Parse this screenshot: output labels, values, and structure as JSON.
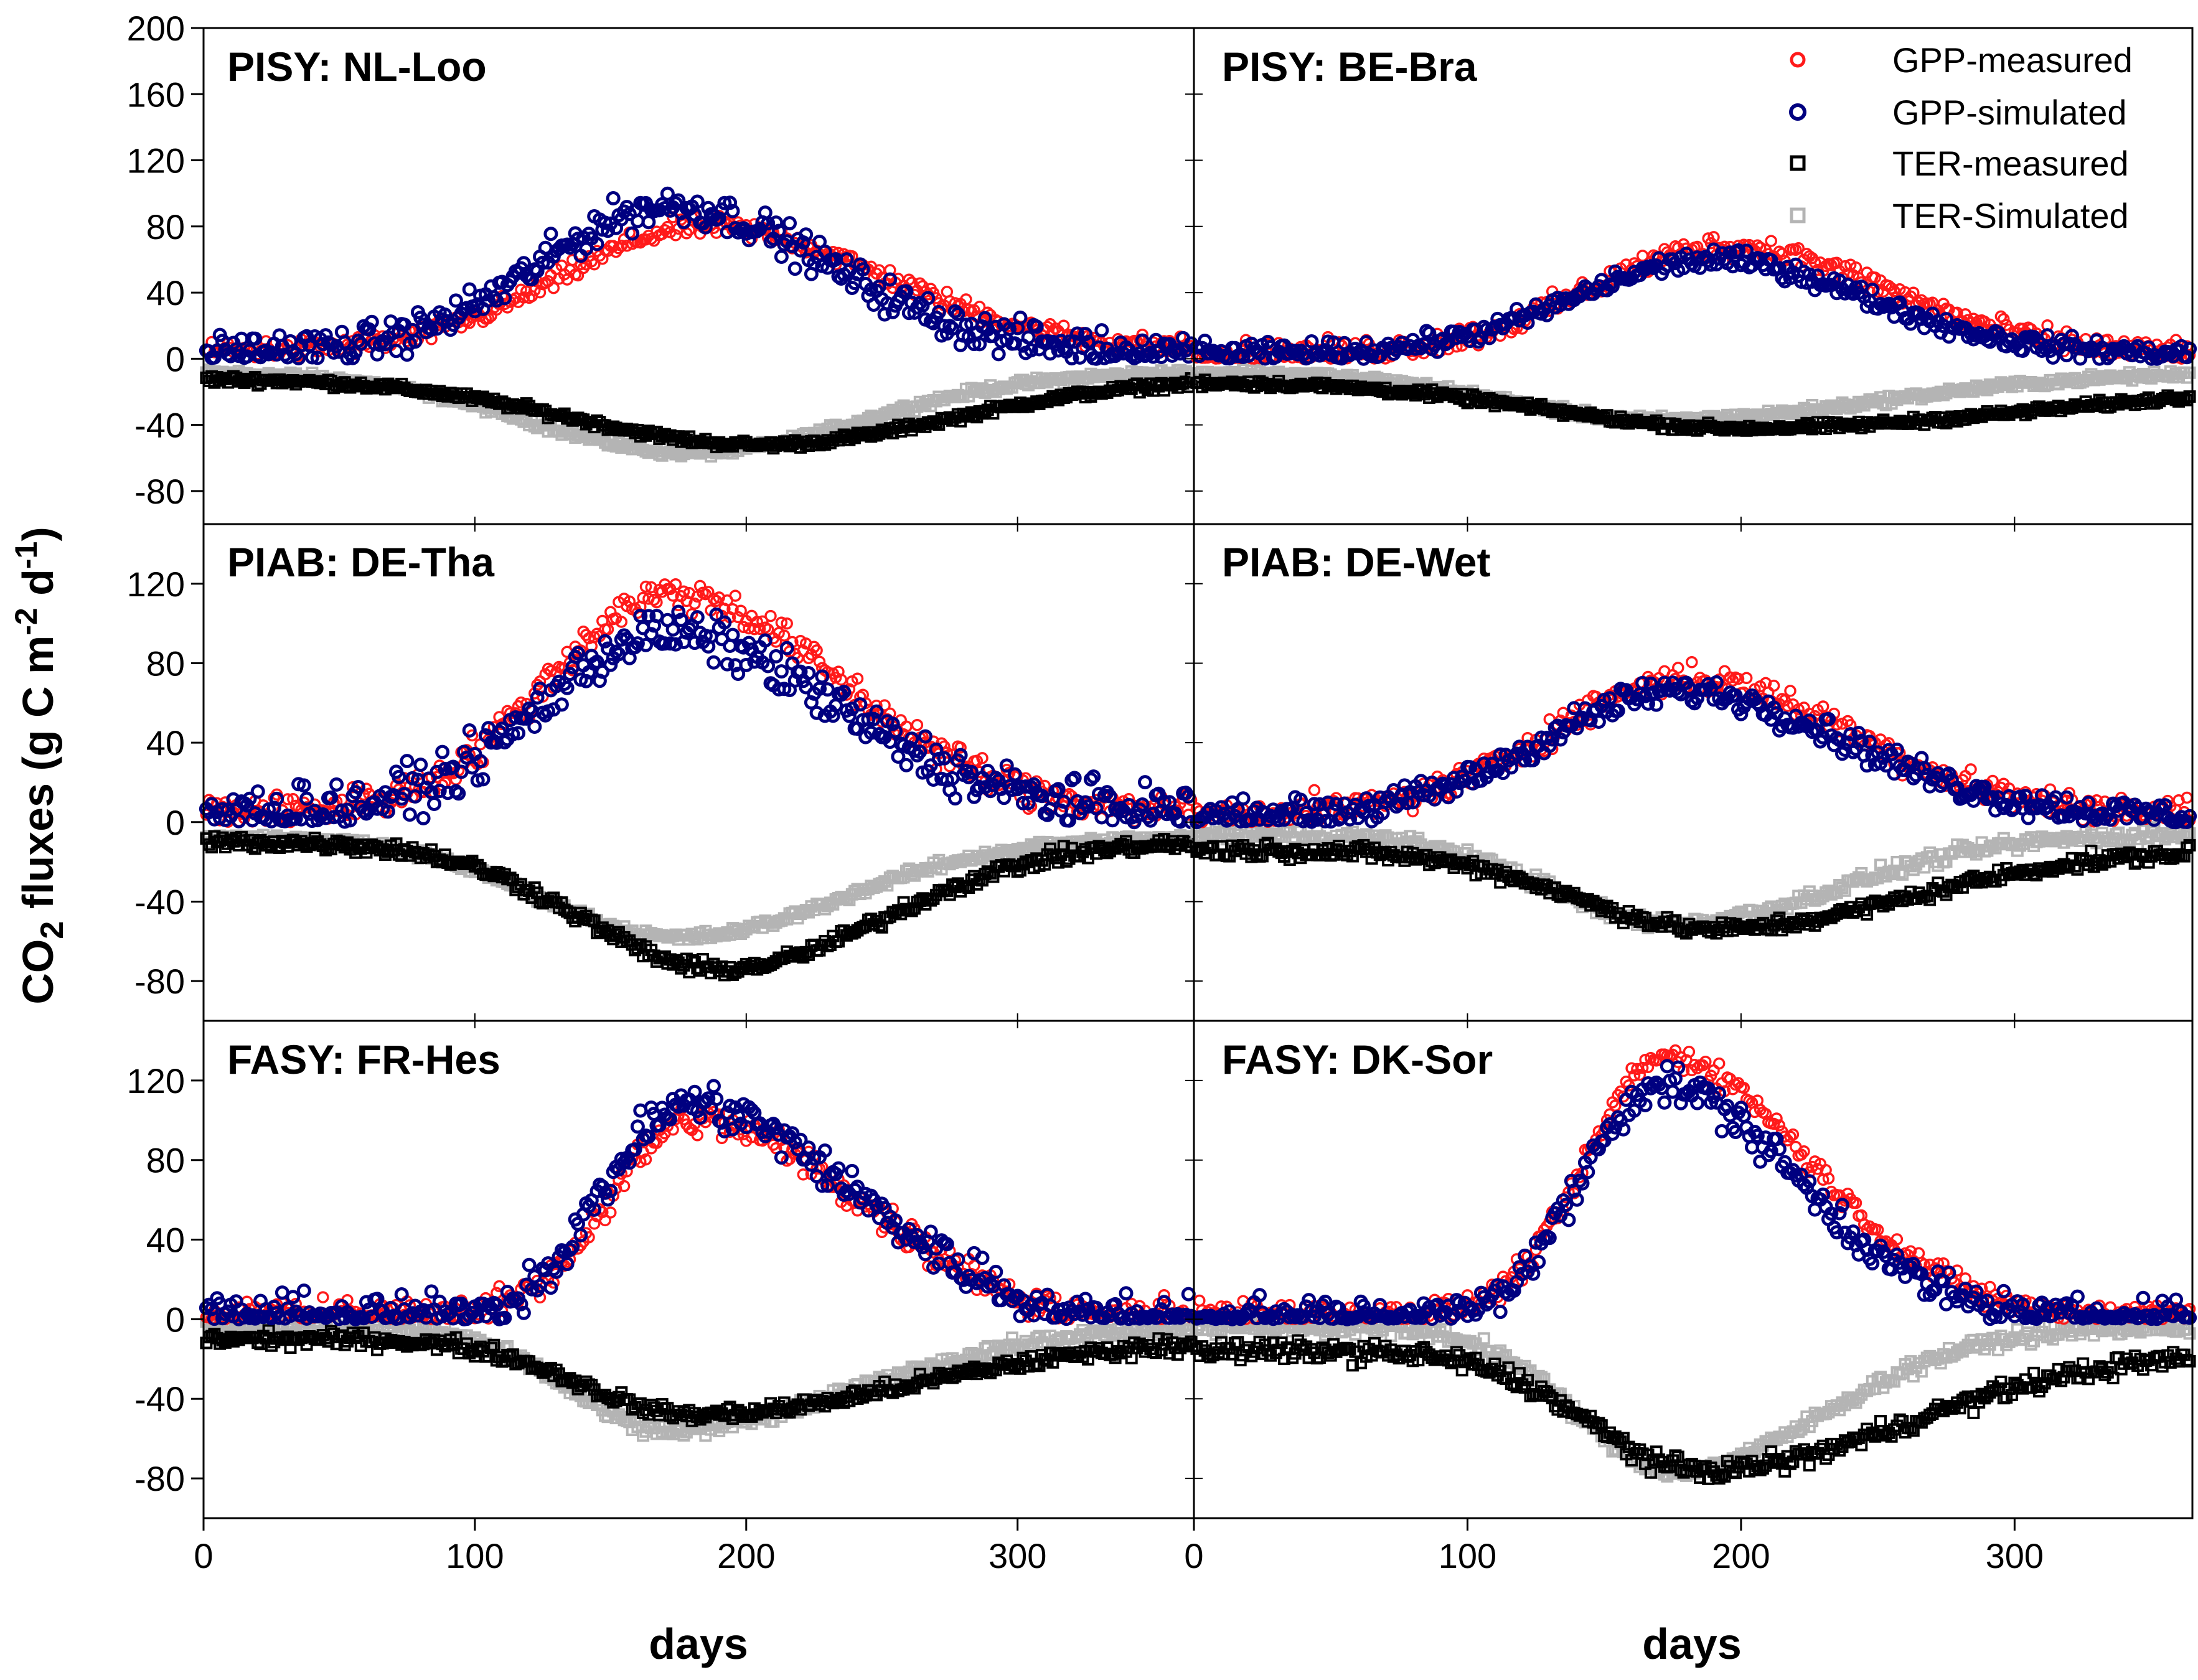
{
  "chart_data": {
    "type": "scatter",
    "ylabel": "CO2 fluxes (g C m-2 d-1)",
    "ylabel_parts": {
      "pre": "CO",
      "sub": "2",
      "mid": " fluxes (g C m",
      "sup1": "-2",
      "mid2": " d",
      "sup2": "-1",
      "post": ")"
    },
    "xlabel": "days",
    "xlim": [
      0,
      365
    ],
    "x_ticks": [
      "0",
      "100",
      "200",
      "300"
    ],
    "legend": [
      {
        "label": "GPP-measured",
        "color": "#ff1a1a",
        "marker": "circle"
      },
      {
        "label": "GPP-simulated",
        "color": "#000080",
        "marker": "circle"
      },
      {
        "label": "TER-measured",
        "color": "#000000",
        "marker": "square"
      },
      {
        "label": "TER-Simulated",
        "color": "#b4b4b4",
        "marker": "square"
      }
    ],
    "rows": [
      {
        "ylim": [
          -100,
          200
        ],
        "y_ticks": [
          200,
          160,
          120,
          80,
          40,
          0,
          -40,
          -80
        ]
      },
      {
        "ylim": [
          -100,
          150
        ],
        "y_ticks": [
          120,
          80,
          40,
          0,
          -40,
          -80
        ]
      },
      {
        "ylim": [
          -100,
          150
        ],
        "y_ticks": [
          120,
          80,
          40,
          0,
          -40,
          -80
        ]
      }
    ],
    "panels": [
      {
        "title": "PISY: NL-Loo",
        "row": 0,
        "col": 0,
        "gpp_measured": {
          "base": 5,
          "peak": 80,
          "mu": 185,
          "sw": 52,
          "se": 65,
          "noise": 5
        },
        "gpp_simulated": {
          "base": 4,
          "peak": 92,
          "mu": 172,
          "sw": 48,
          "se": 58,
          "noise": 9
        },
        "ter_measured": {
          "base": -12,
          "peak": -52,
          "mu": 205,
          "sw": 68,
          "se": 70,
          "noise": 2
        },
        "ter_simulated": {
          "base": -8,
          "peak": -57,
          "mu": 180,
          "sw": 60,
          "se": 62,
          "noise": 2
        }
      },
      {
        "title": "PISY: BE-Bra",
        "row": 0,
        "col": 1,
        "gpp_measured": {
          "base": 3,
          "peak": 68,
          "mu": 195,
          "sw": 50,
          "se": 58,
          "noise": 6
        },
        "gpp_simulated": {
          "base": 3,
          "peak": 60,
          "mu": 190,
          "sw": 50,
          "se": 55,
          "noise": 5
        },
        "ter_measured": {
          "base": -14,
          "peak": -42,
          "mu": 200,
          "sw": 70,
          "se": 110,
          "noise": 2
        },
        "ter_simulated": {
          "base": -8,
          "peak": -37,
          "mu": 170,
          "sw": 55,
          "se": 80,
          "noise": 2
        }
      },
      {
        "title": "PIAB: DE-Tha",
        "row": 1,
        "col": 0,
        "gpp_measured": {
          "base": 5,
          "peak": 115,
          "mu": 172,
          "sw": 45,
          "se": 62,
          "noise": 7
        },
        "gpp_simulated": {
          "base": 5,
          "peak": 95,
          "mu": 170,
          "sw": 45,
          "se": 62,
          "noise": 10
        },
        "ter_measured": {
          "base": -10,
          "peak": -74,
          "mu": 190,
          "sw": 50,
          "se": 60,
          "noise": 3
        },
        "ter_simulated": {
          "base": -8,
          "peak": -58,
          "mu": 175,
          "sw": 50,
          "se": 60,
          "noise": 2
        }
      },
      {
        "title": "PIAB: DE-Wet",
        "row": 1,
        "col": 1,
        "gpp_measured": {
          "base": 4,
          "peak": 72,
          "mu": 180,
          "sw": 50,
          "se": 60,
          "noise": 6
        },
        "gpp_simulated": {
          "base": 3,
          "peak": 66,
          "mu": 178,
          "sw": 50,
          "se": 60,
          "noise": 6
        },
        "ter_measured": {
          "base": -14,
          "peak": -54,
          "mu": 190,
          "sw": 50,
          "se": 70,
          "noise": 3
        },
        "ter_simulated": {
          "base": -6,
          "peak": -51,
          "mu": 175,
          "sw": 45,
          "se": 60,
          "noise": 3
        }
      },
      {
        "title": "FASY: FR-Hes",
        "row": 2,
        "col": 0,
        "gpp_measured": {
          "base": 2,
          "peak": 100,
          "mu": 180,
          "sw": 30,
          "se": 60,
          "noise": 7,
          "on": 95,
          "off": 308
        },
        "gpp_simulated": {
          "base": 1,
          "peak": 108,
          "mu": 178,
          "sw": 30,
          "se": 60,
          "noise": 9,
          "on": 95,
          "off": 308
        },
        "ter_measured": {
          "base": -10,
          "peak": -48,
          "mu": 180,
          "sw": 40,
          "se": 80,
          "noise": 3
        },
        "ter_simulated": {
          "base": -4,
          "peak": -56,
          "mu": 170,
          "sw": 35,
          "se": 70,
          "noise": 3
        }
      },
      {
        "title": "FASY: DK-Sor",
        "row": 2,
        "col": 1,
        "gpp_measured": {
          "base": 3,
          "peak": 132,
          "mu": 172,
          "sw": 28,
          "se": 52,
          "noise": 5,
          "on": 85,
          "off": 305
        },
        "gpp_simulated": {
          "base": 1,
          "peak": 118,
          "mu": 170,
          "sw": 28,
          "se": 50,
          "noise": 8,
          "on": 92,
          "off": 300
        },
        "ter_measured": {
          "base": -16,
          "peak": -76,
          "mu": 185,
          "sw": 40,
          "se": 75,
          "noise": 4
        },
        "ter_simulated": {
          "base": -4,
          "peak": -76,
          "mu": 175,
          "sw": 35,
          "se": 55,
          "noise": 3
        }
      }
    ]
  }
}
